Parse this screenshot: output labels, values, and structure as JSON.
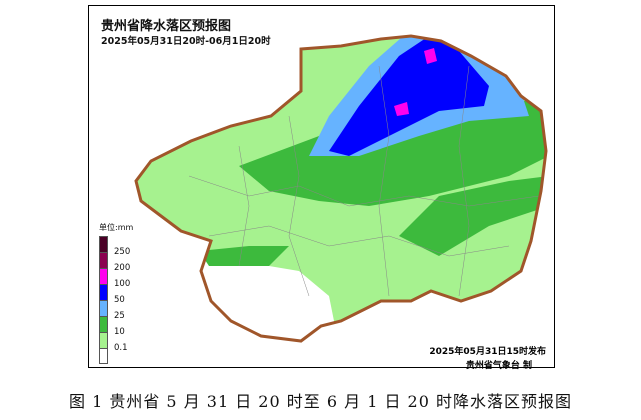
{
  "map": {
    "title": "贵州省降水落区预报图",
    "subtitle": "2025年05月31日20时-06月1日20时",
    "issue_time": "2025年05月31日15时发布",
    "issuer": "贵州省气象台 制"
  },
  "legend": {
    "unit": "单位:mm",
    "items": [
      {
        "label": "",
        "color": "#4a0026"
      },
      {
        "label": "250",
        "color": "#8b0050"
      },
      {
        "label": "200",
        "color": "#ff00ee"
      },
      {
        "label": "100",
        "color": "#0000ff"
      },
      {
        "label": "50",
        "color": "#66b3ff"
      },
      {
        "label": "25",
        "color": "#3dba3d"
      },
      {
        "label": "10",
        "color": "#a6f28f"
      },
      {
        "label": "0.1",
        "color": "#ffffff"
      }
    ]
  },
  "caption": "图 1 贵州省 5 月 31 日 20 时至 6 月 1 日 20 时降水落区预报图"
}
